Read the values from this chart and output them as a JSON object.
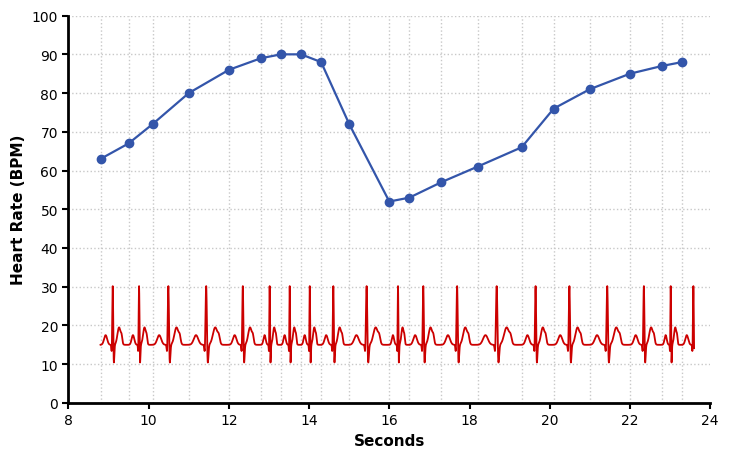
{
  "xlabel": "Seconds",
  "ylabel": "Heart Rate (BPM)",
  "xlim": [
    8,
    24
  ],
  "ylim": [
    0,
    100
  ],
  "xticks": [
    8,
    10,
    12,
    14,
    16,
    18,
    20,
    22,
    24
  ],
  "yticks": [
    0,
    10,
    20,
    30,
    40,
    50,
    60,
    70,
    80,
    90,
    100
  ],
  "blue_x": [
    8.8,
    9.5,
    10.1,
    11.0,
    12.0,
    12.8,
    13.3,
    13.8,
    14.3,
    15.0,
    16.0,
    16.5,
    17.3,
    18.2,
    19.3,
    20.1,
    21.0,
    22.0,
    22.8,
    23.3
  ],
  "blue_y": [
    63,
    67,
    72,
    80,
    86,
    89,
    90,
    90,
    88,
    72,
    52,
    53,
    57,
    61,
    66,
    76,
    81,
    85,
    87,
    88
  ],
  "blue_color": "#3355aa",
  "blue_marker": "o",
  "blue_markersize": 6,
  "blue_linewidth": 1.6,
  "ecg_color": "#cc0000",
  "ecg_linewidth": 1.3,
  "ecg_baseline": 15,
  "ecg_amplitude": 16,
  "bg_color": "#ffffff",
  "grid_color": "#c8c8c8",
  "grid_linestyle": ":",
  "grid_linewidth": 1.0,
  "vline_color": "#c8c8c8",
  "vline_linestyle": ":",
  "vline_linewidth": 1.0,
  "spine_color": "#000000",
  "spine_linewidth": 2.0,
  "xlabel_fontsize": 11,
  "ylabel_fontsize": 11,
  "tick_labelsize": 10
}
